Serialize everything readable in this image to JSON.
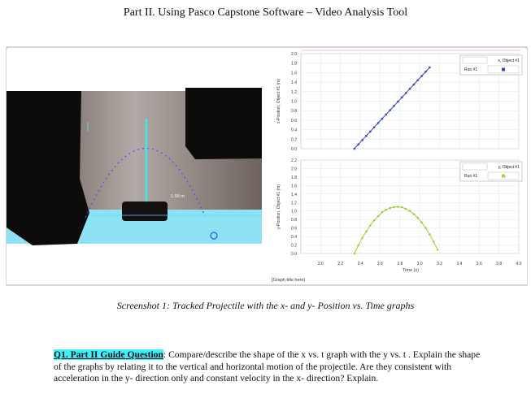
{
  "header": {
    "title": "Part II. Using Pasco Capstone Software – Video Analysis Tool"
  },
  "figure": {
    "video": {
      "scale_label": "1.00 m"
    },
    "time_axis": {
      "label": "Time (s)",
      "xlim": [
        1.8,
        4.0
      ],
      "xticks": [
        {
          "value": 2.0,
          "label": "2.0"
        },
        2.2,
        2.4,
        2.6,
        2.8,
        {
          "value": 3.0,
          "label": "3.0"
        },
        3.2,
        3.4,
        3.6,
        3.8,
        {
          "value": 4.0,
          "label": "4.0"
        }
      ]
    },
    "graphs": [
      {
        "type": "line",
        "y_label": "x-Position, Object #1 (m)",
        "ylim": [
          0,
          2.0
        ],
        "yticks": [
          {
            "value": 0.0,
            "label": "0.0"
          },
          0.2,
          0.4,
          0.6,
          0.8,
          {
            "value": 1.0,
            "label": "1.0"
          },
          1.2,
          1.4,
          1.6,
          1.8,
          {
            "value": 2.0,
            "label": "2.0"
          }
        ],
        "legend": {
          "name": "x, Object #1",
          "run": "Run #1"
        },
        "color": "#3346c4",
        "x": [
          2.34,
          2.38,
          2.42,
          2.46,
          2.5,
          2.54,
          2.58,
          2.62,
          2.66,
          2.7,
          2.74,
          2.78,
          2.82,
          2.86,
          2.9,
          2.94,
          2.98,
          3.02,
          3.06,
          3.1
        ],
        "values": [
          0.0,
          0.09,
          0.18,
          0.27,
          0.36,
          0.45,
          0.54,
          0.63,
          0.72,
          0.81,
          0.9,
          0.99,
          1.08,
          1.17,
          1.26,
          1.35,
          1.44,
          1.53,
          1.62,
          1.71
        ]
      },
      {
        "type": "line",
        "y_label": "y-Position, Object #1 (m)",
        "ylim": [
          0,
          2.2
        ],
        "yticks": [
          {
            "value": 0.0,
            "label": "0.0"
          },
          0.2,
          0.4,
          0.6,
          0.8,
          {
            "value": 1.0,
            "label": "1.0"
          },
          1.2,
          1.4,
          1.6,
          1.8,
          {
            "value": 2.0,
            "label": "2.0"
          },
          2.2
        ],
        "legend": {
          "name": "y, Object #1",
          "run": "Run #1"
        },
        "color": "#9fcf3a",
        "x": [
          2.34,
          2.38,
          2.42,
          2.46,
          2.5,
          2.54,
          2.58,
          2.62,
          2.66,
          2.7,
          2.74,
          2.78,
          2.82,
          2.86,
          2.9,
          2.94,
          2.98,
          3.02,
          3.06,
          3.1,
          3.14,
          3.18
        ],
        "values": [
          0.0,
          0.19,
          0.37,
          0.52,
          0.66,
          0.78,
          0.88,
          0.97,
          1.03,
          1.07,
          1.09,
          1.1,
          1.09,
          1.05,
          1.0,
          0.93,
          0.84,
          0.73,
          0.6,
          0.45,
          0.28,
          0.09
        ]
      }
    ],
    "graph_title": "[Graph title here]",
    "caption": "Screenshot 1: Tracked Projectile with the x- and y- Position vs. Time graphs"
  },
  "question": {
    "label": "Q1. Part II Guide Question",
    "text": "Compare/describe the shape of the x vs. t graph with the y vs. t . Explain the shape of the graphs by relating it to the vertical and horizontal motion of the projectile. Are they consistent with acceleration in the y- direction only and constant velocity in the x- direction? Explain."
  }
}
